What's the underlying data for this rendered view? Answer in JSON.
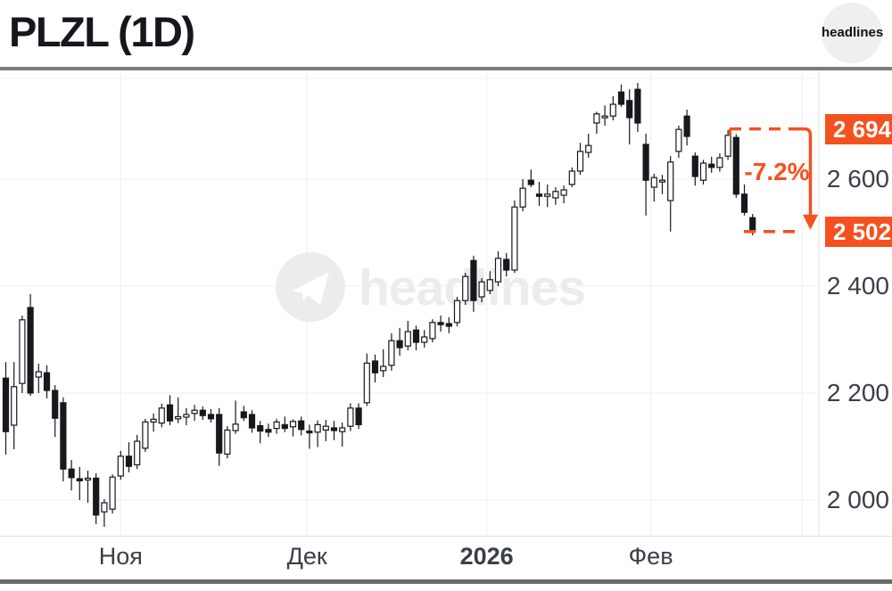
{
  "header": {
    "title": "PLZL (1D)",
    "logo_text": "headlines"
  },
  "watermark": {
    "text": "headlines"
  },
  "colors": {
    "accent": "#f4511e",
    "title_text": "#15171c",
    "axis_text": "#3a4048",
    "grid": "#efefef",
    "axis_line": "#e2e2e2",
    "divider_gray": "#7b7b7b",
    "candle_down": "#16181d",
    "candle_up": "#ffffff",
    "watermark_gray": "#ececec",
    "logo_bg": "#efefef"
  },
  "annotation": {
    "change_label": "-7.2%",
    "high_badge": "2 694",
    "low_badge": "2 502",
    "high_price": 2694,
    "low_price": 2502
  },
  "chart_data": {
    "type": "candlestick",
    "title": "PLZL (1D)",
    "symbol": "PLZL",
    "timeframe": "1D",
    "grid": true,
    "ylim": [
      1933,
      2802
    ],
    "y_ticks": [
      {
        "price": 2600,
        "label": "2 600"
      },
      {
        "price": 2400,
        "label": "2 400"
      },
      {
        "price": 2200,
        "label": "2 200"
      },
      {
        "price": 2000,
        "label": "2 000"
      }
    ],
    "x_ticks": [
      {
        "label": "Ноя",
        "index": 14,
        "bold": false
      },
      {
        "label": "Дек",
        "index": 36.7,
        "bold": false
      },
      {
        "label": "2026",
        "index": 58.6,
        "bold": true
      },
      {
        "label": "Фев",
        "index": 78.6,
        "bold": false
      },
      {
        "label": "",
        "index": 97,
        "bold": false
      }
    ],
    "ohlc_order": [
      "open",
      "high",
      "low",
      "close"
    ],
    "candles": [
      [
        2228,
        2258,
        2085,
        2128
      ],
      [
        2140,
        2258,
        2095,
        2212
      ],
      [
        2218,
        2345,
        2200,
        2337
      ],
      [
        2360,
        2385,
        2195,
        2200
      ],
      [
        2230,
        2255,
        2200,
        2240
      ],
      [
        2238,
        2252,
        2190,
        2205
      ],
      [
        2205,
        2215,
        2118,
        2153
      ],
      [
        2182,
        2192,
        2035,
        2058
      ],
      [
        2058,
        2075,
        2018,
        2042
      ],
      [
        2040,
        2062,
        2000,
        2036
      ],
      [
        2038,
        2055,
        1995,
        2041
      ],
      [
        2041,
        2050,
        1955,
        1972
      ],
      [
        1978,
        2002,
        1950,
        1995
      ],
      [
        1983,
        2048,
        1975,
        2043
      ],
      [
        2045,
        2092,
        2038,
        2082
      ],
      [
        2082,
        2108,
        2052,
        2063
      ],
      [
        2066,
        2122,
        2058,
        2110
      ],
      [
        2097,
        2152,
        2090,
        2146
      ],
      [
        2146,
        2162,
        2128,
        2151
      ],
      [
        2144,
        2180,
        2136,
        2172
      ],
      [
        2178,
        2196,
        2140,
        2148
      ],
      [
        2152,
        2192,
        2144,
        2156
      ],
      [
        2155,
        2172,
        2140,
        2160
      ],
      [
        2162,
        2178,
        2148,
        2168
      ],
      [
        2168,
        2175,
        2150,
        2158
      ],
      [
        2160,
        2170,
        2145,
        2152
      ],
      [
        2160,
        2172,
        2064,
        2088
      ],
      [
        2086,
        2138,
        2078,
        2131
      ],
      [
        2130,
        2186,
        2124,
        2142
      ],
      [
        2165,
        2176,
        2148,
        2154
      ],
      [
        2160,
        2168,
        2126,
        2135
      ],
      [
        2139,
        2148,
        2106,
        2129
      ],
      [
        2132,
        2143,
        2118,
        2127
      ],
      [
        2134,
        2152,
        2124,
        2146
      ],
      [
        2141,
        2156,
        2127,
        2134
      ],
      [
        2137,
        2151,
        2119,
        2147
      ],
      [
        2148,
        2156,
        2121,
        2132
      ],
      [
        2129,
        2141,
        2096,
        2127
      ],
      [
        2127,
        2149,
        2099,
        2141
      ],
      [
        2131,
        2150,
        2110,
        2138
      ],
      [
        2135,
        2148,
        2112,
        2130
      ],
      [
        2128,
        2145,
        2100,
        2135
      ],
      [
        2138,
        2181,
        2129,
        2172
      ],
      [
        2172,
        2181,
        2133,
        2141
      ],
      [
        2182,
        2274,
        2176,
        2256
      ],
      [
        2260,
        2272,
        2220,
        2238
      ],
      [
        2242,
        2282,
        2230,
        2250
      ],
      [
        2252,
        2312,
        2242,
        2298
      ],
      [
        2298,
        2322,
        2270,
        2285
      ],
      [
        2288,
        2335,
        2280,
        2315
      ],
      [
        2318,
        2326,
        2280,
        2295
      ],
      [
        2295,
        2318,
        2285,
        2305
      ],
      [
        2302,
        2338,
        2295,
        2332
      ],
      [
        2332,
        2345,
        2315,
        2328
      ],
      [
        2330,
        2342,
        2312,
        2325
      ],
      [
        2332,
        2380,
        2325,
        2373
      ],
      [
        2373,
        2425,
        2365,
        2418
      ],
      [
        2448,
        2457,
        2352,
        2373
      ],
      [
        2380,
        2415,
        2370,
        2408
      ],
      [
        2392,
        2428,
        2385,
        2412
      ],
      [
        2408,
        2465,
        2400,
        2452
      ],
      [
        2450,
        2462,
        2418,
        2430
      ],
      [
        2430,
        2560,
        2425,
        2548
      ],
      [
        2548,
        2600,
        2540,
        2583
      ],
      [
        2598,
        2618,
        2585,
        2590
      ],
      [
        2572,
        2595,
        2550,
        2568
      ],
      [
        2568,
        2590,
        2548,
        2572
      ],
      [
        2565,
        2585,
        2552,
        2577
      ],
      [
        2570,
        2588,
        2555,
        2580
      ],
      [
        2590,
        2622,
        2585,
        2615
      ],
      [
        2615,
        2668,
        2608,
        2652
      ],
      [
        2650,
        2685,
        2640,
        2663
      ],
      [
        2705,
        2726,
        2685,
        2722
      ],
      [
        2715,
        2738,
        2700,
        2718
      ],
      [
        2718,
        2755,
        2710,
        2740
      ],
      [
        2763,
        2777,
        2735,
        2740
      ],
      [
        2747,
        2768,
        2665,
        2715
      ],
      [
        2768,
        2780,
        2688,
        2705
      ],
      [
        2665,
        2685,
        2532,
        2598
      ],
      [
        2585,
        2610,
        2558,
        2603
      ],
      [
        2598,
        2608,
        2572,
        2598
      ],
      [
        2560,
        2643,
        2502,
        2632
      ],
      [
        2652,
        2700,
        2640,
        2693
      ],
      [
        2718,
        2730,
        2663,
        2680
      ],
      [
        2643,
        2650,
        2588,
        2605
      ],
      [
        2598,
        2636,
        2590,
        2630
      ],
      [
        2628,
        2642,
        2612,
        2622
      ],
      [
        2622,
        2648,
        2614,
        2640
      ],
      [
        2643,
        2692,
        2636,
        2682
      ],
      [
        2678,
        2684,
        2565,
        2572
      ],
      [
        2572,
        2590,
        2532,
        2538
      ],
      [
        2528,
        2535,
        2495,
        2502
      ]
    ]
  }
}
